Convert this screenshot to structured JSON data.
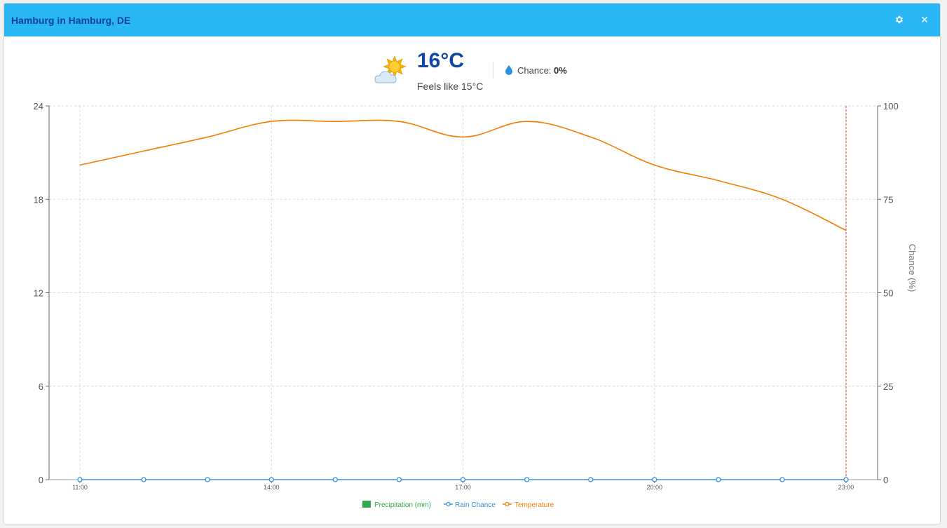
{
  "window": {
    "title": "Hamburg in Hamburg, DE"
  },
  "toolbar": {
    "settings_icon": "gear-icon",
    "close_label": "×",
    "close_icon": "close-icon"
  },
  "current": {
    "icon": "sun-behind-cloud-icon",
    "temperature": "16°C",
    "feels_like": "Feels like 15°C",
    "chance_label": "Chance:",
    "chance_value": "0%",
    "chance_icon": "droplet-icon"
  },
  "colors": {
    "temperature": "#f57c00",
    "rain": "#3a93d6",
    "precip": "#2eaa4f",
    "now_marker": "#e53935",
    "title_bar": "#29b6f6",
    "title_text": "#0d3f9e"
  },
  "chart_data": {
    "type": "line",
    "x": [
      "11:00",
      "12:00",
      "13:00",
      "14:00",
      "15:00",
      "16:00",
      "17:00",
      "18:00",
      "19:00",
      "20:00",
      "21:00",
      "22:00",
      "23:00"
    ],
    "x_tick_labels": [
      "11:00",
      "14:00",
      "17:00",
      "20:00",
      "23:00"
    ],
    "left_axis": {
      "label": "",
      "ylim": [
        0,
        24
      ],
      "ticks": [
        "0",
        "6",
        "12",
        "18",
        "24"
      ]
    },
    "right_axis": {
      "label": "Chance (%)",
      "ylim": [
        0,
        100
      ],
      "ticks": [
        "0",
        "25",
        "50",
        "75",
        "100"
      ]
    },
    "grid": true,
    "legend_position": "bottom",
    "series": [
      {
        "name": "Precipitation (mm)",
        "type": "bar",
        "axis": "left",
        "values": [
          0,
          0,
          0,
          0,
          0,
          0,
          0,
          0,
          0,
          0,
          0,
          0,
          0
        ]
      },
      {
        "name": "Rain Chance",
        "type": "line",
        "axis": "right",
        "values": [
          0,
          0,
          0,
          0,
          0,
          0,
          0,
          0,
          0,
          0,
          0,
          0,
          0
        ]
      },
      {
        "name": "Temperature",
        "type": "line",
        "axis": "left",
        "values": [
          20.2,
          21.1,
          22.0,
          23.0,
          23.0,
          23.0,
          22.0,
          23.0,
          22.0,
          20.2,
          19.2,
          18.0,
          16.0
        ]
      }
    ],
    "current_time_marker": "23:00"
  }
}
